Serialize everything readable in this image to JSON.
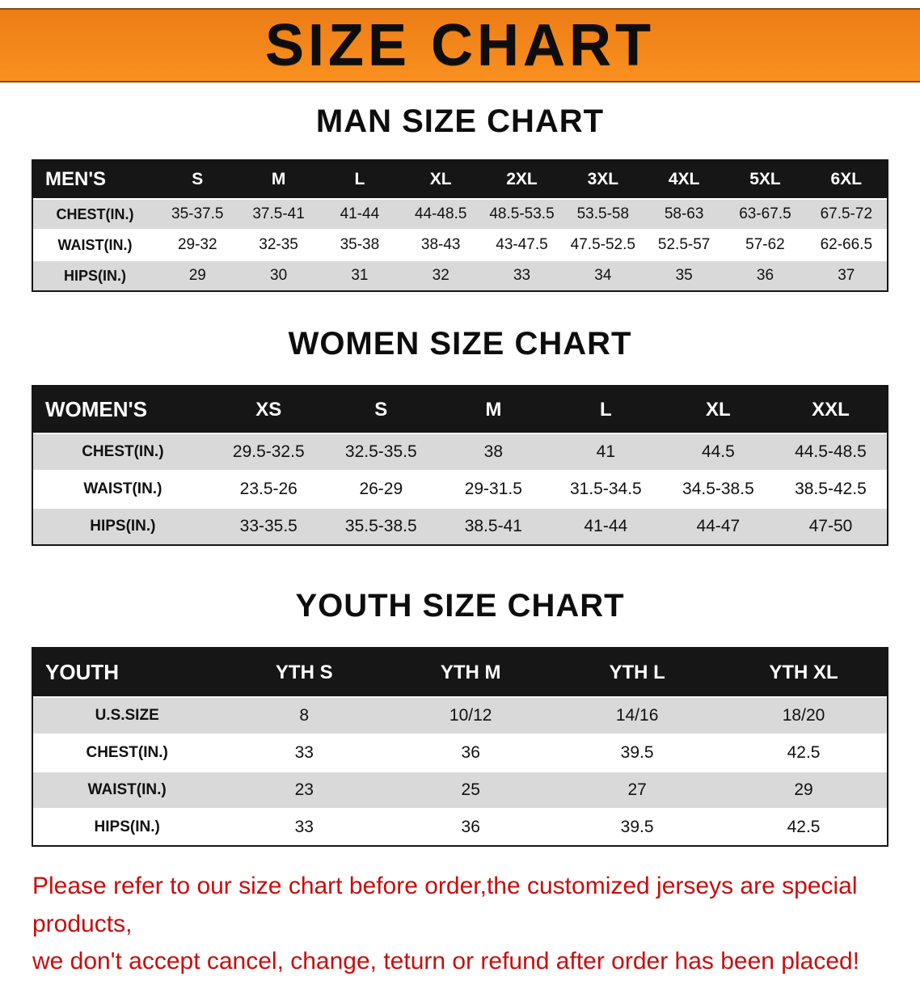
{
  "banner": {
    "title": "SIZE CHART",
    "bg_color": "#f28a1e",
    "text_color": "#0d0d0d"
  },
  "colors": {
    "table_header_bg": "#161616",
    "table_header_text": "#ffffff",
    "row_shade": "#d9d9d9",
    "footer_text": "#c90d0d"
  },
  "sections": [
    {
      "heading": "MAN SIZE CHART",
      "table": {
        "header": [
          "MEN'S",
          "S",
          "M",
          "L",
          "XL",
          "2XL",
          "3XL",
          "4XL",
          "5XL",
          "6XL"
        ],
        "rows": [
          {
            "label": "CHEST(IN.)",
            "values": [
              "35-37.5",
              "37.5-41",
              "41-44",
              "44-48.5",
              "48.5-53.5",
              "53.5-58",
              "58-63",
              "63-67.5",
              "67.5-72"
            ]
          },
          {
            "label": "WAIST(IN.)",
            "values": [
              "29-32",
              "32-35",
              "35-38",
              "38-43",
              "43-47.5",
              "47.5-52.5",
              "52.5-57",
              "57-62",
              "62-66.5"
            ]
          },
          {
            "label": "HIPS(IN.)",
            "values": [
              "29",
              "30",
              "31",
              "32",
              "33",
              "34",
              "35",
              "36",
              "37"
            ]
          }
        ]
      }
    },
    {
      "heading": "WOMEN SIZE CHART",
      "table": {
        "header": [
          "WOMEN'S",
          "XS",
          "S",
          "M",
          "L",
          "XL",
          "XXL"
        ],
        "rows": [
          {
            "label": "CHEST(IN.)",
            "values": [
              "29.5-32.5",
              "32.5-35.5",
              "38",
              "41",
              "44.5",
              "44.5-48.5"
            ]
          },
          {
            "label": "WAIST(IN.)",
            "values": [
              "23.5-26",
              "26-29",
              "29-31.5",
              "31.5-34.5",
              "34.5-38.5",
              "38.5-42.5"
            ]
          },
          {
            "label": "HIPS(IN.)",
            "values": [
              "33-35.5",
              "35.5-38.5",
              "38.5-41",
              "41-44",
              "44-47",
              "47-50"
            ]
          }
        ]
      }
    },
    {
      "heading": "YOUTH SIZE CHART",
      "table": {
        "header": [
          "YOUTH",
          "YTH S",
          "YTH M",
          "YTH L",
          "YTH XL"
        ],
        "rows": [
          {
            "label": "U.S.SIZE",
            "values": [
              "8",
              "10/12",
              "14/16",
              "18/20"
            ]
          },
          {
            "label": "CHEST(IN.)",
            "values": [
              "33",
              "36",
              "39.5",
              "42.5"
            ]
          },
          {
            "label": "WAIST(IN.)",
            "values": [
              "23",
              "25",
              "27",
              "29"
            ]
          },
          {
            "label": "HIPS(IN.)",
            "values": [
              "33",
              "36",
              "39.5",
              "42.5"
            ]
          }
        ]
      }
    }
  ],
  "footer": {
    "line1": "Please refer to our size chart before order,the customized jerseys are special products,",
    "line2": "we don't accept cancel, change, teturn or refund after order has been placed!"
  }
}
